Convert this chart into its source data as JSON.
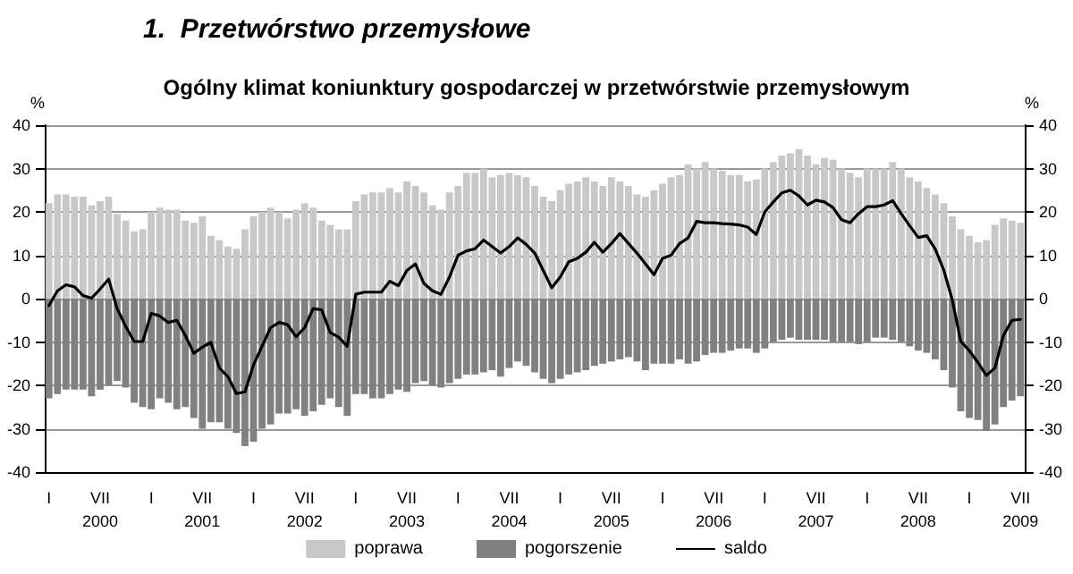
{
  "chart_data": {
    "type": "bar",
    "title": "1.  Przetwórstwo przemysłowe",
    "subtitle": "Ogólny klimat koniunktury gospodarczej w przetwórstwie przemysłowym",
    "ylabel": "%",
    "y2label": "%",
    "categories": [
      "I",
      null,
      null,
      null,
      null,
      null,
      "VII\n2000",
      null,
      null,
      null,
      null,
      null,
      "I",
      null,
      null,
      null,
      null,
      null,
      "VII\n2001",
      null,
      null,
      null,
      null,
      null,
      "I",
      null,
      null,
      null,
      null,
      null,
      "VII\n2002",
      null,
      null,
      null,
      null,
      null,
      "I",
      null,
      null,
      null,
      null,
      null,
      "VII\n2003",
      null,
      null,
      null,
      null,
      null,
      "I",
      null,
      null,
      null,
      null,
      null,
      "VII\n2004",
      null,
      null,
      null,
      null,
      null,
      "I",
      null,
      null,
      null,
      null,
      null,
      "VII\n2005",
      null,
      null,
      null,
      null,
      null,
      "I",
      null,
      null,
      null,
      null,
      null,
      "VII\n2006",
      null,
      null,
      null,
      null,
      null,
      "I",
      null,
      null,
      null,
      null,
      null,
      "VII\n2007",
      null,
      null,
      null,
      null,
      null,
      "I",
      null,
      null,
      null,
      null,
      null,
      "VII\n2008",
      null,
      null,
      null,
      null,
      null,
      "I",
      null,
      null,
      null,
      null,
      null,
      "VII\n2009"
    ],
    "series": [
      {
        "name": "poprawa",
        "color": "#c8c8c8",
        "values": [
          22,
          24,
          24,
          23.5,
          23.5,
          21.5,
          22.5,
          23.5,
          19.5,
          18,
          15.5,
          16,
          20,
          21,
          20.5,
          20.5,
          18,
          17.5,
          19,
          14.5,
          13.5,
          12,
          11.5,
          16,
          19,
          20,
          21,
          20,
          18.5,
          20.5,
          22,
          21,
          18,
          17,
          16,
          16,
          22.5,
          24,
          24.5,
          24.5,
          25.5,
          24.5,
          27,
          26,
          24.5,
          21.5,
          20.5,
          24.5,
          26,
          29,
          29,
          30,
          28,
          28.5,
          29,
          28.5,
          28,
          26,
          23.5,
          22.5,
          25,
          26.5,
          27,
          28,
          27,
          26,
          28,
          27,
          26,
          24,
          23.5,
          25,
          26.5,
          28,
          28.5,
          31,
          30,
          31.5,
          30,
          29.5,
          28.5,
          28.5,
          27,
          27.5,
          30,
          31.5,
          33,
          33.5,
          34.5,
          33,
          31,
          32.5,
          32,
          30,
          29,
          28,
          30,
          30,
          30,
          31.5,
          30,
          28,
          27,
          25.5,
          24,
          22,
          19,
          16,
          14.5,
          13,
          13.5,
          17,
          18.5,
          18,
          17.5
        ]
      },
      {
        "name": "pogorszenie",
        "color": "#808080",
        "values": [
          -23,
          -22,
          -21,
          -21,
          -21,
          -22.5,
          -21,
          -20,
          -19,
          -20.5,
          -24,
          -25,
          -25.5,
          -23,
          -24,
          -25.5,
          -25,
          -27.5,
          -30,
          -28.5,
          -28.5,
          -30,
          -31,
          -34,
          -33,
          -30,
          -29,
          -26.5,
          -26.5,
          -25.5,
          -27,
          -26,
          -24.5,
          -23,
          -25,
          -27,
          -22,
          -22,
          -23,
          -23,
          -22,
          -21,
          -21.5,
          -19.5,
          -19,
          -20,
          -20.5,
          -19.5,
          -18.5,
          -17.5,
          -17.5,
          -17,
          -16.5,
          -18,
          -16,
          -14.5,
          -15.5,
          -17,
          -18.5,
          -19.5,
          -18.5,
          -17.5,
          -17,
          -16.5,
          -15.5,
          -15,
          -14.5,
          -14,
          -13.5,
          -14.5,
          -16.5,
          -15,
          -15,
          -15,
          -14,
          -15,
          -14.5,
          -13,
          -12.5,
          -12.5,
          -12,
          -11.5,
          -11.5,
          -12.5,
          -11.5,
          -10,
          -9.5,
          -9,
          -9.5,
          -9.5,
          -9.5,
          -9.5,
          -10,
          -10,
          -10,
          -10.5,
          -10,
          -9,
          -9,
          -9.5,
          -10,
          -11,
          -12,
          -12.5,
          -14,
          -16.5,
          -20.5,
          -26,
          -27.5,
          -28,
          -30.5,
          -29,
          -25,
          -23.5,
          -22.5
        ]
      },
      {
        "name": "saldo",
        "type": "line",
        "color": "#000000",
        "values": [
          -1.6,
          1.8,
          3.2,
          2.7,
          0.7,
          0.1,
          2.2,
          4.5,
          -2.3,
          -6.4,
          -9.9,
          -9.9,
          -3.4,
          -4,
          -5.5,
          -5,
          -8.5,
          -12.6,
          -11.2,
          -10.1,
          -16,
          -18,
          -21.9,
          -21.5,
          -15.3,
          -11,
          -6.7,
          -5.5,
          -6,
          -8.8,
          -6.7,
          -2.3,
          -2.6,
          -7.8,
          -8.9,
          -11,
          1,
          1.5,
          1.5,
          1.5,
          4,
          3,
          6.5,
          8,
          3.5,
          1.8,
          1,
          5,
          10,
          11,
          11.5,
          13.5,
          12,
          10.5,
          12,
          14,
          12.5,
          10.5,
          6.5,
          2.5,
          5,
          8.5,
          9.3,
          10.7,
          13,
          10.7,
          12.7,
          15,
          12.7,
          10.5,
          8,
          5.5,
          9.3,
          10,
          12.7,
          14,
          17.8,
          17.5,
          17.5,
          17.3,
          17.2,
          17,
          16.5,
          14.8,
          20,
          22.3,
          24.4,
          25,
          23.7,
          21.6,
          22.7,
          22.3,
          21,
          18.2,
          17.5,
          19.6,
          21.2,
          21.2,
          21.6,
          22.6,
          19.6,
          16.8,
          14.1,
          14.5,
          11.4,
          6.6,
          -0.3,
          -9.9,
          -12,
          -14.7,
          -17.7,
          -16,
          -8.5,
          -5,
          -4.8
        ]
      }
    ],
    "stacked": true,
    "ylim": [
      -40,
      40
    ],
    "yticks": [
      -40,
      -30,
      -20,
      -10,
      0,
      10,
      20,
      30,
      40
    ],
    "y2lim": [
      -40,
      40
    ],
    "y2ticks": [
      -40,
      -30,
      -20,
      -10,
      0,
      10,
      20,
      30,
      40
    ],
    "grid": "y",
    "legend": "bottom",
    "marker": "none",
    "line_style": "solid"
  }
}
